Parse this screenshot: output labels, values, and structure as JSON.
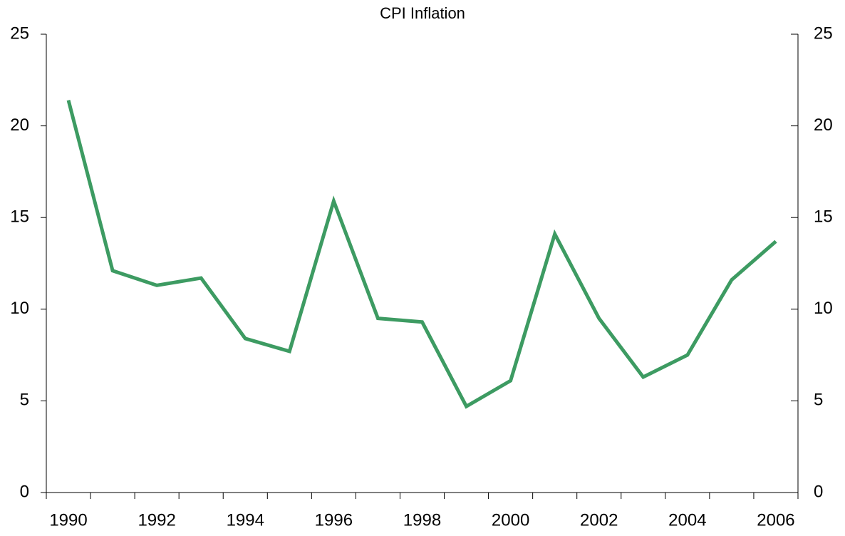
{
  "chart_data": {
    "type": "line",
    "title": "CPI Inflation",
    "categories": [
      "1990",
      null,
      "1992",
      null,
      "1994",
      null,
      "1996",
      null,
      "1998",
      null,
      "2000",
      null,
      "2002",
      null,
      "2004",
      null,
      "2006"
    ],
    "series": [
      {
        "color": "#3d9b62",
        "values": [
          21.4,
          12.1,
          11.3,
          11.7,
          8.4,
          7.7,
          15.9,
          9.5,
          9.3,
          4.7,
          6.1,
          14.1,
          9.5,
          6.3,
          7.5,
          11.6,
          13.7
        ]
      }
    ],
    "ylim": [
      0,
      25
    ],
    "yticks": [
      0,
      5,
      10,
      15,
      20,
      25
    ],
    "y2lim": [
      0,
      25
    ],
    "y2ticks": [
      0,
      5,
      10,
      15,
      20,
      25
    ],
    "grid": false
  }
}
